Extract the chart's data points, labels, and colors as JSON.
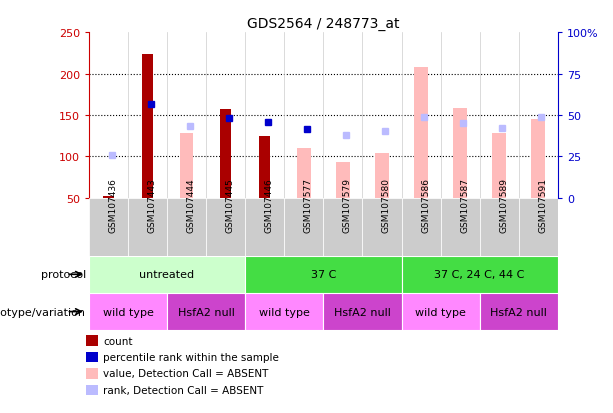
{
  "title": "GDS2564 / 248773_at",
  "samples": [
    "GSM107436",
    "GSM107443",
    "GSM107444",
    "GSM107445",
    "GSM107446",
    "GSM107577",
    "GSM107579",
    "GSM107580",
    "GSM107586",
    "GSM107587",
    "GSM107589",
    "GSM107591"
  ],
  "count_values": [
    52,
    224,
    null,
    157,
    125,
    null,
    null,
    null,
    null,
    null,
    null,
    null
  ],
  "percentile_rank": [
    null,
    163,
    null,
    146,
    141,
    133,
    null,
    null,
    null,
    null,
    null,
    null
  ],
  "absent_value": [
    null,
    null,
    128,
    null,
    null,
    110,
    93,
    104,
    208,
    158,
    128,
    145
  ],
  "absent_rank": [
    102,
    null,
    137,
    null,
    null,
    null,
    126,
    131,
    147,
    140,
    134,
    147
  ],
  "ylim_left": [
    50,
    250
  ],
  "ylim_right": [
    0,
    100
  ],
  "left_ticks": [
    50,
    100,
    150,
    200,
    250
  ],
  "right_ticks": [
    0,
    25,
    50,
    75,
    100
  ],
  "right_tick_labels": [
    "0",
    "25",
    "50",
    "75",
    "100%"
  ],
  "protocol_groups": [
    {
      "label": "untreated",
      "start": 0,
      "end": 3,
      "color": "#ccffcc"
    },
    {
      "label": "37 C",
      "start": 4,
      "end": 7,
      "color": "#44dd44"
    },
    {
      "label": "37 C, 24 C, 44 C",
      "start": 8,
      "end": 11,
      "color": "#44dd44"
    }
  ],
  "genotype_groups": [
    {
      "label": "wild type",
      "start": 0,
      "end": 1,
      "color": "#ff88ff"
    },
    {
      "label": "HsfA2 null",
      "start": 2,
      "end": 3,
      "color": "#cc44cc"
    },
    {
      "label": "wild type",
      "start": 4,
      "end": 5,
      "color": "#ff88ff"
    },
    {
      "label": "HsfA2 null",
      "start": 6,
      "end": 7,
      "color": "#cc44cc"
    },
    {
      "label": "wild type",
      "start": 8,
      "end": 9,
      "color": "#ff88ff"
    },
    {
      "label": "HsfA2 null",
      "start": 10,
      "end": 11,
      "color": "#cc44cc"
    }
  ],
  "count_color": "#aa0000",
  "percentile_color": "#0000cc",
  "absent_value_color": "#ffbbbb",
  "absent_rank_color": "#bbbbff",
  "grid_color": "#000000",
  "bg_color": "#ffffff",
  "sample_row_color": "#cccccc",
  "left_label_color": "#cc0000",
  "right_label_color": "#0000cc",
  "legend_items": [
    {
      "color": "#aa0000",
      "label": "count"
    },
    {
      "color": "#0000cc",
      "label": "percentile rank within the sample"
    },
    {
      "color": "#ffbbbb",
      "label": "value, Detection Call = ABSENT"
    },
    {
      "color": "#bbbbff",
      "label": "rank, Detection Call = ABSENT"
    }
  ]
}
